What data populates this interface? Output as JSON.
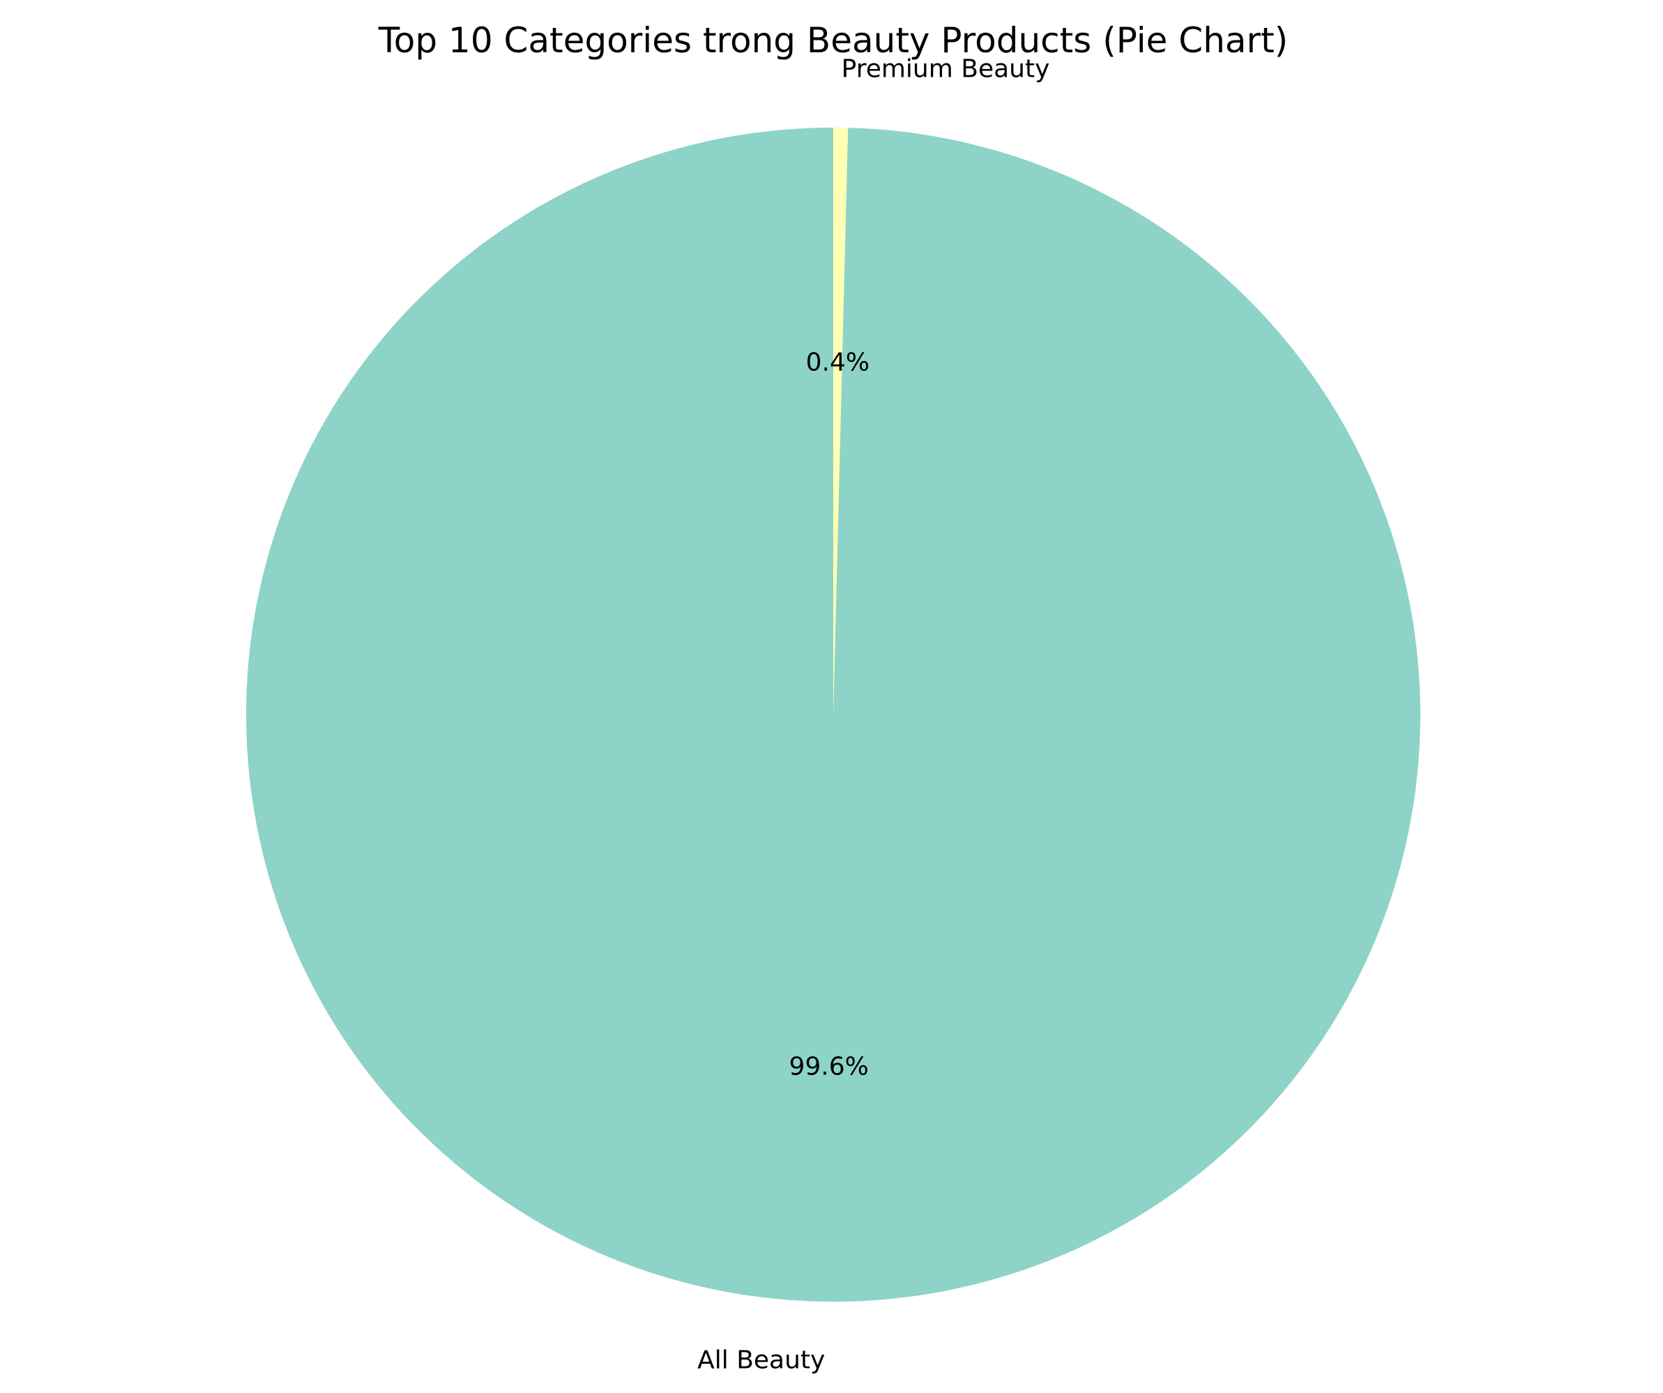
{
  "chart_data": {
    "type": "pie",
    "title": "Top 10 Categories trong Beauty Products (Pie Chart)",
    "categories": [
      "All Beauty",
      "Premium Beauty"
    ],
    "values": [
      99.6,
      0.4
    ],
    "percent_labels": [
      "99.6%",
      "0.4%"
    ],
    "colors": [
      "#8dd3c7",
      "#ffffb3"
    ],
    "start_angle_deg": 90,
    "direction": "counterclockwise",
    "legend": "none"
  }
}
